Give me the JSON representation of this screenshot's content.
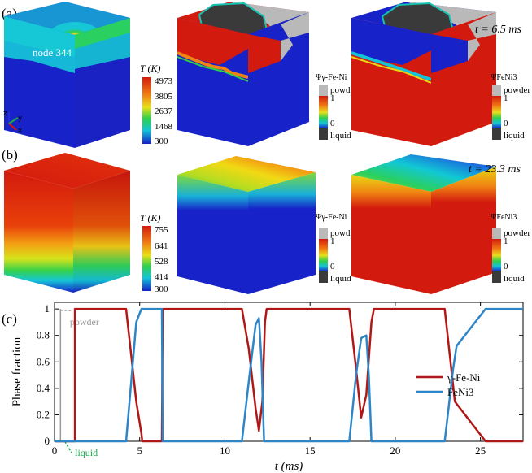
{
  "panel_labels": {
    "a": "(a)",
    "b": "(b)",
    "c": "(c)"
  },
  "row_a": {
    "time_label": "t = 6.5 ms",
    "node_label": "node 344",
    "axes_triad": {
      "z": "z",
      "y": "y",
      "x": "x"
    },
    "temp_legend": {
      "title": "T (K)",
      "ticks": [
        "4973",
        "3805",
        "2637",
        "1468",
        "300"
      ]
    },
    "phase_legends": [
      {
        "symbol": "Ψγ-Fe-Ni",
        "powder": "powder",
        "one": "1",
        "zero": "0",
        "liquid": "liquid"
      },
      {
        "symbol": "ΨFeNi3",
        "powder": "powder",
        "one": "1",
        "zero": "0",
        "liquid": "liquid"
      }
    ]
  },
  "row_b": {
    "time_label": "t = 23.3 ms",
    "temp_legend": {
      "title": "T (K)",
      "ticks": [
        "755",
        "641",
        "528",
        "414",
        "300"
      ]
    },
    "phase_legends": [
      {
        "symbol": "Ψγ-Fe-Ni",
        "powder": "powder",
        "one": "1",
        "zero": "0",
        "liquid": "liquid"
      },
      {
        "symbol": "ΨFeNi3",
        "powder": "powder",
        "one": "1",
        "zero": "0",
        "liquid": "liquid"
      }
    ]
  },
  "colors": {
    "red": "#d11a0f",
    "blue": "#1111cc",
    "powder": "#b9b9b9",
    "liquid": "#3a3a3a",
    "fe_ni": "#b01818",
    "feni3": "#2e86c8"
  },
  "chart_data": {
    "type": "line",
    "xlabel": "t (ms)",
    "ylabel": "Phase fraction",
    "xlim": [
      0,
      27.5
    ],
    "ylim": [
      0,
      1.05
    ],
    "xticks": [
      0,
      5,
      10,
      15,
      20,
      25
    ],
    "yticks": [
      0,
      0.2,
      0.4,
      0.6,
      0.8,
      1
    ],
    "annotations": {
      "powder": "powder",
      "liquid": "liquid"
    },
    "series": [
      {
        "name": "γ-Fe-Ni",
        "x": [
          0,
          1.2,
          1.2,
          4.2,
          4.5,
          4.8,
          5.1,
          5.15,
          6.3,
          6.35,
          11.0,
          11.4,
          11.8,
          12.0,
          12.2,
          12.35,
          12.45,
          17.3,
          17.7,
          18.0,
          18.3,
          18.6,
          18.75,
          22.9,
          23.5,
          25.3,
          27.5
        ],
        "y": [
          0,
          0,
          1,
          1,
          0.65,
          0.3,
          0.06,
          0,
          0,
          1,
          1,
          0.7,
          0.25,
          0.08,
          0.3,
          0.9,
          1,
          1,
          0.55,
          0.18,
          0.35,
          0.9,
          1,
          1,
          0.3,
          0,
          0
        ]
      },
      {
        "name": "FeNi3",
        "x": [
          0,
          4.2,
          4.5,
          4.8,
          5.1,
          5.2,
          6.2,
          6.3,
          6.35,
          11.0,
          11.4,
          11.8,
          12.0,
          12.15,
          12.3,
          17.3,
          17.7,
          18.0,
          18.3,
          18.45,
          18.6,
          22.9,
          23.4,
          23.6,
          25.3,
          27.5
        ],
        "y": [
          0,
          0,
          0.45,
          0.9,
          1,
          1,
          1,
          1,
          0,
          0,
          0.45,
          0.88,
          0.93,
          0.6,
          0,
          0,
          0.5,
          0.78,
          0.8,
          0.5,
          0,
          0,
          0.55,
          0.72,
          1,
          1
        ]
      }
    ]
  }
}
